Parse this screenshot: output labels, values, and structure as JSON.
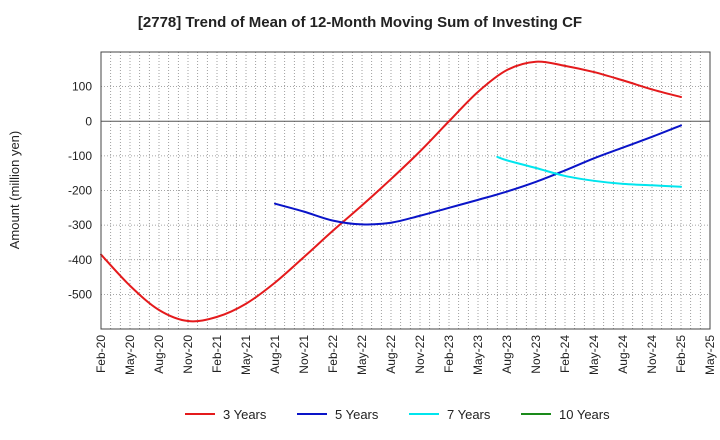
{
  "chart_data": {
    "type": "line",
    "title": "[2778]  Trend of Mean of 12-Month Moving Sum of Investing CF",
    "xlabel": "",
    "ylabel": "Amount (million yen)",
    "ylim": [
      -600,
      200
    ],
    "y_ticks": [
      100,
      0,
      -100,
      -200,
      -300,
      -400,
      -500
    ],
    "x_tick_labels": [
      "Feb-20",
      "May-20",
      "Aug-20",
      "Nov-20",
      "Feb-21",
      "May-21",
      "Aug-21",
      "Nov-21",
      "Feb-22",
      "May-22",
      "Aug-22",
      "Nov-22",
      "Feb-23",
      "May-23",
      "Aug-23",
      "Nov-23",
      "Feb-24",
      "May-24",
      "Aug-24",
      "Nov-24",
      "Feb-25",
      "May-25"
    ],
    "grid": true,
    "legend_position": "bottom",
    "series": [
      {
        "name": "3 Years",
        "color": "#e41a1c",
        "x": [
          "Feb-20",
          "May-20",
          "Aug-20",
          "Nov-20",
          "Feb-21",
          "May-21",
          "Aug-21",
          "Nov-21",
          "Feb-22",
          "May-22",
          "Aug-22",
          "Nov-22",
          "Feb-23",
          "May-23",
          "Aug-23",
          "Nov-23",
          "Feb-24",
          "May-24",
          "Aug-24",
          "Nov-24",
          "Feb-25"
        ],
        "values": [
          -385,
          -475,
          -545,
          -577,
          -565,
          -527,
          -466,
          -392,
          -316,
          -243,
          -167,
          -87,
          0,
          85,
          148,
          172,
          160,
          142,
          118,
          92,
          70
        ]
      },
      {
        "name": "5 Years",
        "color": "#0a14c8",
        "x": [
          "Aug-21",
          "Nov-21",
          "Feb-22",
          "May-22",
          "Aug-22",
          "Nov-22",
          "Feb-23",
          "May-23",
          "Aug-23",
          "Nov-23",
          "Feb-24",
          "May-24",
          "Aug-24",
          "Nov-24",
          "Feb-25"
        ],
        "values": [
          -238,
          -261,
          -287,
          -298,
          -293,
          -273,
          -250,
          -227,
          -203,
          -175,
          -142,
          -107,
          -76,
          -45,
          -12
        ]
      },
      {
        "name": "7 Years",
        "color": "#00e5ee",
        "x": [
          "Jul-23",
          "Aug-23",
          "Nov-23",
          "Feb-24",
          "May-24",
          "Aug-24",
          "Nov-24",
          "Feb-25"
        ],
        "values": [
          -103,
          -113,
          -135,
          -158,
          -172,
          -181,
          -185,
          -189
        ]
      },
      {
        "name": "10 Years",
        "color": "#1a8a1a",
        "x": [],
        "values": []
      }
    ]
  }
}
